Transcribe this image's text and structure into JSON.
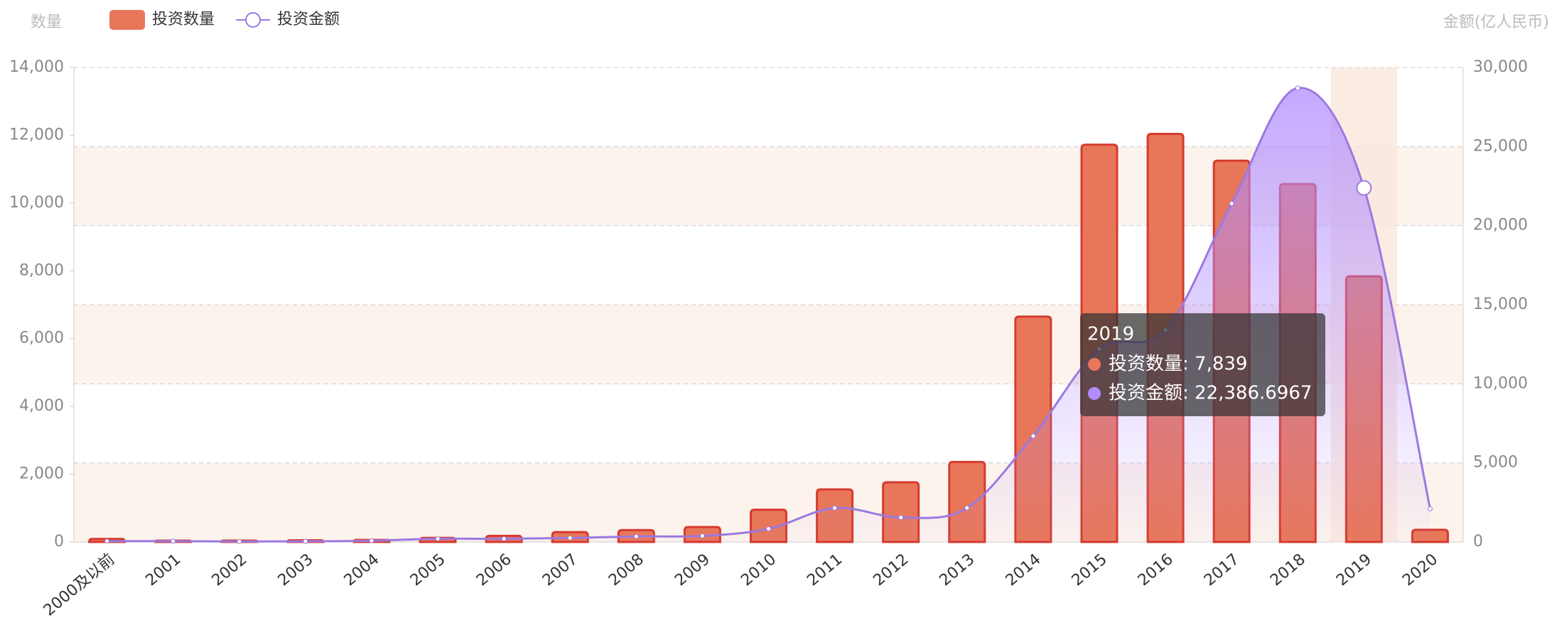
{
  "chart_data": {
    "type": "bar-line",
    "y_axis_label": "数量",
    "y2_axis_label": "金额(亿人民币)",
    "categories": [
      "2000及以前",
      "2001",
      "2002",
      "2003",
      "2004",
      "2005",
      "2006",
      "2007",
      "2008",
      "2009",
      "2010",
      "2011",
      "2012",
      "2013",
      "2014",
      "2015",
      "2016",
      "2017",
      "2018",
      "2019",
      "2020"
    ],
    "series": [
      {
        "name": "投资数量",
        "type": "bar",
        "color": "#e8775a",
        "values": [
          90,
          40,
          40,
          50,
          60,
          120,
          180,
          290,
          350,
          440,
          950,
          1550,
          1760,
          2360,
          6650,
          11720,
          12040,
          11250,
          10560,
          7839,
          360
        ]
      },
      {
        "name": "投资金额",
        "type": "line",
        "axis": "y2",
        "color": "#9b79e0",
        "values": [
          50,
          50,
          30,
          40,
          80,
          200,
          200,
          250,
          350,
          380,
          830,
          2150,
          1550,
          2150,
          6700,
          12200,
          13400,
          21400,
          28700,
          22386.6967,
          2100
        ]
      }
    ],
    "ylim": [
      0,
      14000
    ],
    "yticks": [
      0,
      {
        "value": 2000,
        "label": "2,000"
      },
      {
        "value": 4000,
        "label": "4,000"
      },
      {
        "value": 6000,
        "label": "6,000"
      },
      {
        "value": 8000,
        "label": "8,000"
      },
      {
        "value": 10000,
        "label": "10,000"
      },
      {
        "value": 12000,
        "label": "12,000"
      },
      {
        "value": 14000,
        "label": "14,000"
      }
    ],
    "y2lim": [
      0,
      30000
    ],
    "y2ticks": [
      0,
      {
        "value": 5000,
        "label": "5,000"
      },
      {
        "value": 10000,
        "label": "10,000"
      },
      {
        "value": 15000,
        "label": "15,000"
      },
      {
        "value": 20000,
        "label": "20,000"
      },
      {
        "value": 25000,
        "label": "25,000"
      },
      {
        "value": 30000,
        "label": "30,000"
      }
    ],
    "grid": "y2",
    "legend": "top-left",
    "tooltip": {
      "category": "2019",
      "items": [
        "投资数量: 7,839",
        "投资金额: 22,386.6967"
      ]
    }
  }
}
